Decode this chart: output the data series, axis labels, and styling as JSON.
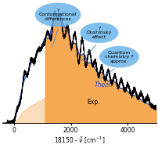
{
  "xlim": [
    -400,
    5000
  ],
  "ylim": [
    0,
    1.05
  ],
  "x_ticks": [
    0,
    2000,
    4000
  ],
  "background_color": "#ffffff",
  "exp_color": "#000000",
  "theor_color": "#2244cc",
  "fill_color": "#f5a040",
  "fill_alpha": 0.9,
  "label_theor": "Theor.",
  "label_exp": "Exp.",
  "theor_label_color": "#2244cc",
  "bubble_color": "#6ab4e8",
  "bubble_alpha": 0.85,
  "figsize": [
    2.03,
    1.89
  ],
  "dpi": 100
}
